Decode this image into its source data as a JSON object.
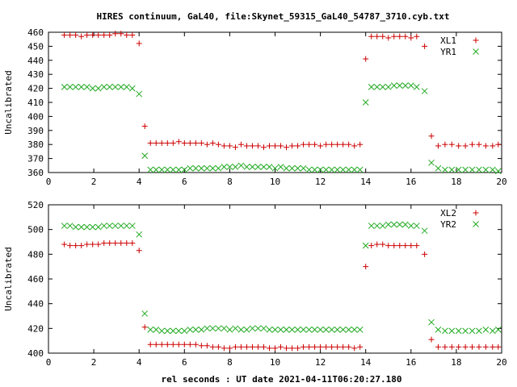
{
  "title": "HIRES continuum, GaL40, file:Skynet_59315_GaL40_54787_3710.cyb.txt",
  "colors": {
    "red": "#cc0000",
    "green": "#22aa22",
    "axis": "#000000"
  },
  "chart_data": [
    {
      "type": "scatter",
      "ylabel": "Uncalibrated",
      "xlabel": "",
      "xlim": [
        0,
        20
      ],
      "ylim": [
        360,
        460
      ],
      "xticks": [
        0,
        2,
        4,
        6,
        8,
        10,
        12,
        14,
        16,
        18,
        20
      ],
      "yticks": [
        360,
        370,
        380,
        390,
        400,
        410,
        420,
        430,
        440,
        450,
        460
      ],
      "grid": false,
      "legend_position": "top-right",
      "series": [
        {
          "name": "XL1",
          "marker": "plus",
          "color": "#cc0000",
          "x": [
            0.7,
            0.95,
            1.2,
            1.45,
            1.7,
            1.95,
            2.2,
            2.45,
            2.7,
            2.95,
            3.2,
            3.45,
            3.7,
            4.0,
            4.25,
            4.5,
            4.75,
            5.0,
            5.25,
            5.5,
            5.75,
            6.0,
            6.25,
            6.5,
            6.75,
            7.0,
            7.25,
            7.5,
            7.75,
            8.0,
            8.25,
            8.5,
            8.75,
            9.0,
            9.25,
            9.5,
            9.75,
            10.0,
            10.25,
            10.5,
            10.75,
            11.0,
            11.25,
            11.5,
            11.75,
            12.0,
            12.25,
            12.5,
            12.75,
            13.0,
            13.25,
            13.5,
            13.75,
            14.0,
            14.25,
            14.5,
            14.75,
            15.0,
            15.25,
            15.5,
            15.75,
            16.0,
            16.25,
            16.6,
            16.9,
            17.2,
            17.5,
            17.8,
            18.1,
            18.4,
            18.7,
            19.0,
            19.3,
            19.6,
            19.85
          ],
          "y": [
            458,
            458,
            458,
            457,
            458,
            458,
            458,
            458,
            458,
            459,
            459,
            458,
            458,
            452,
            393,
            381,
            381,
            381,
            381,
            381,
            382,
            381,
            381,
            381,
            381,
            380,
            381,
            380,
            379,
            379,
            378,
            380,
            379,
            379,
            379,
            378,
            379,
            379,
            379,
            378,
            379,
            379,
            380,
            380,
            380,
            379,
            380,
            380,
            380,
            380,
            380,
            379,
            380,
            441,
            457,
            457,
            457,
            456,
            457,
            457,
            457,
            456,
            457,
            450,
            386,
            379,
            380,
            380,
            379,
            379,
            380,
            380,
            379,
            379,
            380
          ]
        },
        {
          "name": "YR1",
          "marker": "x",
          "color": "#22aa22",
          "x": [
            0.7,
            0.95,
            1.2,
            1.45,
            1.7,
            1.95,
            2.2,
            2.45,
            2.7,
            2.95,
            3.2,
            3.45,
            3.7,
            4.0,
            4.25,
            4.5,
            4.75,
            5.0,
            5.25,
            5.5,
            5.75,
            6.0,
            6.25,
            6.5,
            6.75,
            7.0,
            7.25,
            7.5,
            7.75,
            8.0,
            8.25,
            8.5,
            8.75,
            9.0,
            9.25,
            9.5,
            9.75,
            10.0,
            10.25,
            10.5,
            10.75,
            11.0,
            11.25,
            11.5,
            11.75,
            12.0,
            12.25,
            12.5,
            12.75,
            13.0,
            13.25,
            13.5,
            13.75,
            14.0,
            14.25,
            14.5,
            14.75,
            15.0,
            15.25,
            15.5,
            15.75,
            16.0,
            16.25,
            16.6,
            16.9,
            17.2,
            17.5,
            17.8,
            18.1,
            18.4,
            18.7,
            19.0,
            19.3,
            19.6,
            19.85
          ],
          "y": [
            421,
            421,
            421,
            421,
            421,
            420,
            420,
            421,
            421,
            421,
            421,
            421,
            420,
            416,
            372,
            362,
            362,
            362,
            362,
            362,
            362,
            362,
            363,
            363,
            363,
            363,
            363,
            363,
            364,
            364,
            364,
            365,
            364,
            364,
            364,
            364,
            364,
            363,
            364,
            363,
            363,
            363,
            363,
            362,
            362,
            362,
            362,
            362,
            362,
            362,
            362,
            362,
            362,
            410,
            421,
            421,
            421,
            421,
            422,
            422,
            422,
            422,
            421,
            418,
            367,
            363,
            362,
            362,
            362,
            362,
            362,
            362,
            362,
            362,
            361
          ]
        }
      ]
    },
    {
      "type": "scatter",
      "ylabel": "Uncalibrated",
      "xlabel": "rel seconds : UT date 2021-04-11T06:20:27.180",
      "xlim": [
        0,
        20
      ],
      "ylim": [
        400,
        520
      ],
      "xticks": [
        0,
        2,
        4,
        6,
        8,
        10,
        12,
        14,
        16,
        18,
        20
      ],
      "yticks": [
        400,
        420,
        440,
        460,
        480,
        500,
        520
      ],
      "grid": false,
      "legend_position": "top-right",
      "series": [
        {
          "name": "XL2",
          "marker": "plus",
          "color": "#cc0000",
          "x": [
            0.7,
            0.95,
            1.2,
            1.45,
            1.7,
            1.95,
            2.2,
            2.45,
            2.7,
            2.95,
            3.2,
            3.45,
            3.7,
            4.0,
            4.25,
            4.5,
            4.75,
            5.0,
            5.25,
            5.5,
            5.75,
            6.0,
            6.25,
            6.5,
            6.75,
            7.0,
            7.25,
            7.5,
            7.75,
            8.0,
            8.25,
            8.5,
            8.75,
            9.0,
            9.25,
            9.5,
            9.75,
            10.0,
            10.25,
            10.5,
            10.75,
            11.0,
            11.25,
            11.5,
            11.75,
            12.0,
            12.25,
            12.5,
            12.75,
            13.0,
            13.25,
            13.5,
            13.75,
            14.0,
            14.25,
            14.5,
            14.75,
            15.0,
            15.25,
            15.5,
            15.75,
            16.0,
            16.25,
            16.6,
            16.9,
            17.2,
            17.5,
            17.8,
            18.1,
            18.4,
            18.7,
            19.0,
            19.3,
            19.6,
            19.85
          ],
          "y": [
            488,
            487,
            487,
            487,
            488,
            488,
            488,
            489,
            489,
            489,
            489,
            489,
            489,
            483,
            421,
            407,
            407,
            407,
            407,
            407,
            407,
            407,
            407,
            407,
            406,
            406,
            405,
            405,
            404,
            404,
            405,
            405,
            405,
            405,
            405,
            405,
            404,
            404,
            405,
            404,
            404,
            404,
            405,
            405,
            405,
            405,
            405,
            405,
            405,
            405,
            405,
            404,
            405,
            470,
            487,
            488,
            488,
            487,
            487,
            487,
            487,
            487,
            487,
            480,
            411,
            405,
            405,
            405,
            405,
            405,
            405,
            405,
            405,
            405,
            405
          ]
        },
        {
          "name": "YR2",
          "marker": "x",
          "color": "#22aa22",
          "x": [
            0.7,
            0.95,
            1.2,
            1.45,
            1.7,
            1.95,
            2.2,
            2.45,
            2.7,
            2.95,
            3.2,
            3.45,
            3.7,
            4.0,
            4.25,
            4.5,
            4.75,
            5.0,
            5.25,
            5.5,
            5.75,
            6.0,
            6.25,
            6.5,
            6.75,
            7.0,
            7.25,
            7.5,
            7.75,
            8.0,
            8.25,
            8.5,
            8.75,
            9.0,
            9.25,
            9.5,
            9.75,
            10.0,
            10.25,
            10.5,
            10.75,
            11.0,
            11.25,
            11.5,
            11.75,
            12.0,
            12.25,
            12.5,
            12.75,
            13.0,
            13.25,
            13.5,
            13.75,
            14.0,
            14.25,
            14.5,
            14.75,
            15.0,
            15.25,
            15.5,
            15.75,
            16.0,
            16.25,
            16.6,
            16.9,
            17.2,
            17.5,
            17.8,
            18.1,
            18.4,
            18.7,
            19.0,
            19.3,
            19.6,
            19.85
          ],
          "y": [
            503,
            503,
            502,
            502,
            502,
            502,
            502,
            503,
            503,
            503,
            503,
            503,
            503,
            496,
            432,
            419,
            419,
            418,
            418,
            418,
            418,
            418,
            419,
            419,
            419,
            420,
            420,
            420,
            420,
            419,
            420,
            419,
            419,
            420,
            420,
            420,
            419,
            419,
            419,
            419,
            419,
            419,
            419,
            419,
            419,
            419,
            419,
            419,
            419,
            419,
            419,
            419,
            419,
            487,
            503,
            503,
            503,
            504,
            504,
            504,
            504,
            503,
            503,
            499,
            425,
            419,
            418,
            418,
            418,
            418,
            418,
            418,
            419,
            418,
            419
          ]
        }
      ]
    }
  ]
}
